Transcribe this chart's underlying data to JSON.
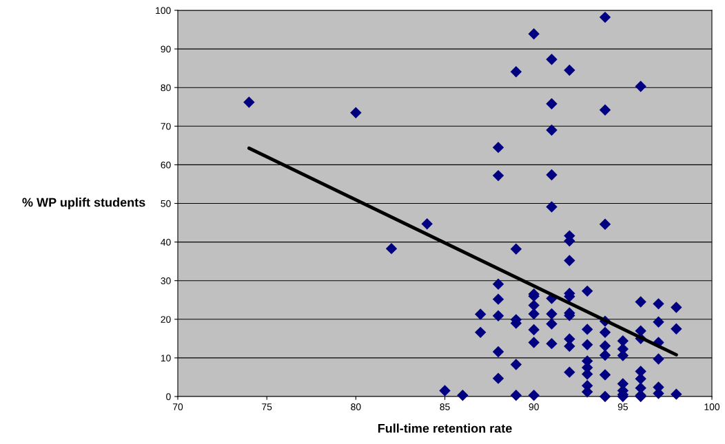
{
  "chart_data": {
    "type": "scatter",
    "xlabel": "Full-time retention rate",
    "ylabel": "% WP uplift students",
    "xlim": [
      70,
      100
    ],
    "xticks": [
      70,
      75,
      80,
      85,
      90,
      95,
      100
    ],
    "ylim": [
      0,
      100
    ],
    "yticks": [
      0,
      10,
      20,
      30,
      40,
      50,
      60,
      70,
      80,
      90,
      100
    ],
    "grid": "y",
    "marker": "diamond",
    "legend": false,
    "series": [
      {
        "color": "#000080",
        "x": [
          74,
          80,
          82,
          84,
          85,
          86,
          87,
          87,
          88,
          88,
          88,
          88,
          88,
          88,
          88,
          89,
          89,
          89,
          89,
          89,
          89,
          90,
          90,
          90,
          90,
          90,
          90,
          90,
          90,
          91,
          91,
          91,
          91,
          91,
          91,
          91,
          91,
          91,
          92,
          92,
          92,
          92,
          92,
          92,
          92,
          92,
          92,
          92,
          92,
          93,
          93,
          93,
          93,
          93,
          93,
          93,
          93,
          94,
          94,
          94,
          94,
          94,
          94,
          94,
          94,
          94,
          95,
          95,
          95,
          95,
          95,
          95,
          95,
          96,
          96,
          96,
          96,
          96,
          96,
          96,
          96,
          96,
          97,
          97,
          97,
          97,
          97,
          97,
          98,
          98,
          98
        ],
        "values": [
          76.2,
          73.5,
          38.3,
          44.7,
          1.5,
          0.3,
          21.3,
          16.6,
          64.5,
          57.2,
          29.1,
          25.2,
          20.9,
          11.6,
          4.7,
          84.1,
          38.2,
          19.9,
          19.0,
          8.3,
          0.3,
          93.9,
          26.5,
          26.0,
          23.6,
          21.4,
          17.3,
          14.0,
          0.3,
          87.3,
          75.8,
          69.0,
          57.4,
          49.1,
          25.4,
          21.4,
          18.8,
          13.7,
          84.5,
          41.6,
          40.3,
          35.2,
          26.7,
          25.9,
          21.6,
          21.0,
          14.9,
          13.0,
          6.3,
          27.3,
          17.4,
          13.4,
          9.2,
          7.5,
          5.8,
          2.8,
          1.2,
          98.2,
          74.2,
          44.6,
          19.5,
          16.6,
          13.1,
          10.7,
          5.6,
          0,
          14.4,
          12.3,
          10.6,
          3.3,
          1.5,
          0.5,
          0,
          80.3,
          24.5,
          17.0,
          15.0,
          6.5,
          4.6,
          2.2,
          0.3,
          0,
          24.0,
          19.3,
          14.0,
          9.7,
          2.4,
          0.8,
          23.1,
          17.5,
          0.6
        ]
      },
      {
        "type": "line",
        "color": "#000000",
        "x": [
          74,
          98
        ],
        "values": [
          64.3,
          10.8
        ],
        "marker": "none",
        "line_style": "solid"
      }
    ]
  }
}
